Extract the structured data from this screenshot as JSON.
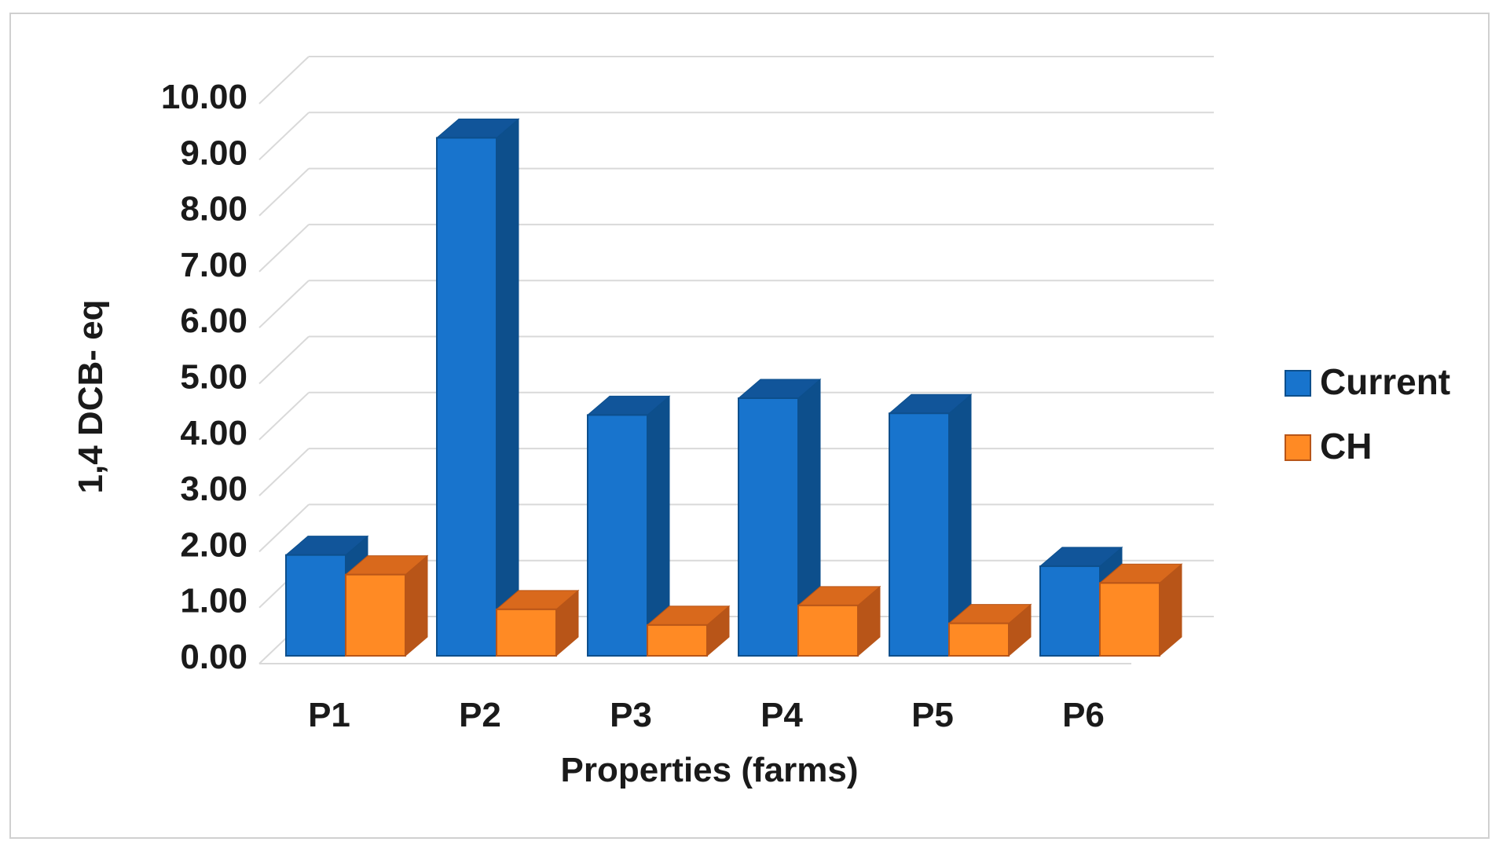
{
  "chart_data": {
    "type": "bar",
    "style": "3d-clustered-column",
    "categories": [
      "P1",
      "P2",
      "P3",
      "P4",
      "P5",
      "P6"
    ],
    "series": [
      {
        "name": "Current",
        "values": [
          1.8,
          9.25,
          4.3,
          4.6,
          4.33,
          1.6
        ],
        "color": "#1874cd",
        "side_color": "#0d4f8c",
        "top_color": "#11559a"
      },
      {
        "name": "CH",
        "values": [
          1.45,
          0.83,
          0.55,
          0.9,
          0.58,
          1.3
        ],
        "color": "#ff8a24",
        "side_color": "#b85518",
        "top_color": "#d9691c"
      }
    ],
    "y_ticks": [
      "0.00",
      "1.00",
      "2.00",
      "3.00",
      "4.00",
      "5.00",
      "6.00",
      "7.00",
      "8.00",
      "9.00",
      "10.00"
    ],
    "ylim": [
      0,
      10
    ],
    "xlabel": "Properties (farms)",
    "ylabel": "1,4 DCB- eq",
    "grid": true,
    "legend_position": "right",
    "grid_color": "#d9d9d9",
    "axis_color": "#d0d0d0"
  }
}
